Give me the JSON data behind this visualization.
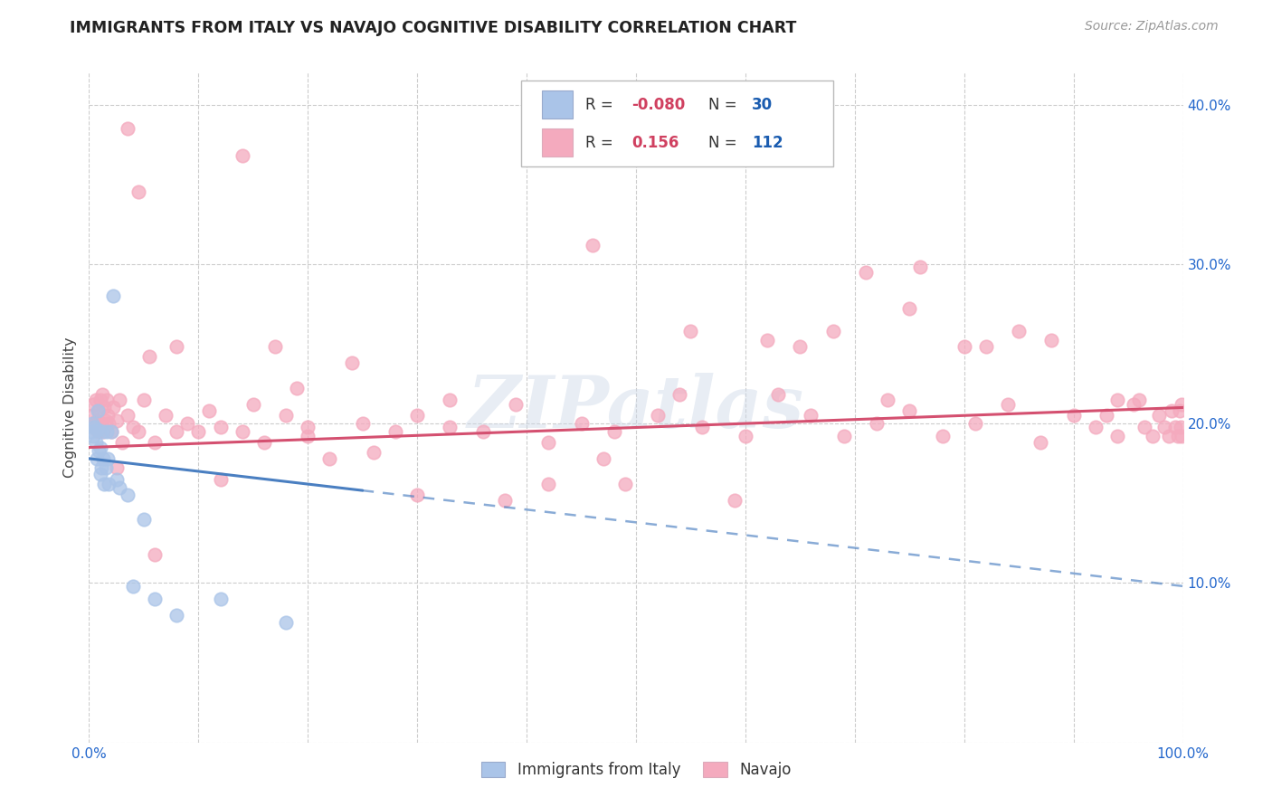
{
  "title": "IMMIGRANTS FROM ITALY VS NAVAJO COGNITIVE DISABILITY CORRELATION CHART",
  "source": "Source: ZipAtlas.com",
  "ylabel": "Cognitive Disability",
  "xlim": [
    0,
    1.0
  ],
  "ylim": [
    0,
    0.42
  ],
  "italy_R": -0.08,
  "italy_N": 30,
  "navajo_R": 0.156,
  "navajo_N": 112,
  "italy_color": "#aac4e8",
  "navajo_color": "#f4aabe",
  "italy_line_color": "#4a7fc1",
  "navajo_line_color": "#d45070",
  "legend_label_italy": "Immigrants from Italy",
  "legend_label_navajo": "Navajo",
  "watermark": "ZIPatlas",
  "italy_x": [
    0.002,
    0.003,
    0.004,
    0.005,
    0.006,
    0.007,
    0.008,
    0.008,
    0.009,
    0.01,
    0.01,
    0.011,
    0.012,
    0.013,
    0.014,
    0.015,
    0.016,
    0.017,
    0.018,
    0.02,
    0.022,
    0.025,
    0.028,
    0.035,
    0.04,
    0.05,
    0.06,
    0.08,
    0.12,
    0.18
  ],
  "italy_y": [
    0.195,
    0.2,
    0.192,
    0.198,
    0.188,
    0.178,
    0.208,
    0.196,
    0.183,
    0.168,
    0.185,
    0.172,
    0.195,
    0.178,
    0.162,
    0.172,
    0.195,
    0.178,
    0.162,
    0.195,
    0.28,
    0.165,
    0.16,
    0.155,
    0.098,
    0.14,
    0.09,
    0.08,
    0.09,
    0.075
  ],
  "navajo_x": [
    0.003,
    0.004,
    0.005,
    0.006,
    0.007,
    0.008,
    0.009,
    0.01,
    0.011,
    0.012,
    0.013,
    0.014,
    0.015,
    0.016,
    0.017,
    0.018,
    0.02,
    0.022,
    0.025,
    0.028,
    0.03,
    0.035,
    0.04,
    0.045,
    0.05,
    0.06,
    0.07,
    0.08,
    0.09,
    0.1,
    0.11,
    0.12,
    0.14,
    0.15,
    0.16,
    0.18,
    0.2,
    0.22,
    0.25,
    0.28,
    0.3,
    0.33,
    0.36,
    0.39,
    0.42,
    0.45,
    0.48,
    0.52,
    0.56,
    0.6,
    0.63,
    0.66,
    0.69,
    0.72,
    0.75,
    0.78,
    0.81,
    0.84,
    0.87,
    0.9,
    0.92,
    0.94,
    0.955,
    0.965,
    0.972,
    0.978,
    0.983,
    0.987,
    0.99,
    0.993,
    0.995,
    0.997,
    0.998,
    0.999,
    0.999,
    0.025,
    0.06,
    0.12,
    0.2,
    0.3,
    0.42,
    0.55,
    0.65,
    0.75,
    0.85,
    0.055,
    0.17,
    0.38,
    0.49,
    0.62,
    0.76,
    0.88,
    0.035,
    0.14,
    0.46,
    0.59,
    0.71,
    0.82,
    0.93,
    0.08,
    0.24,
    0.54,
    0.68,
    0.8,
    0.96,
    0.045,
    0.19,
    0.33,
    0.47,
    0.73,
    0.94,
    0.26
  ],
  "navajo_y": [
    0.205,
    0.212,
    0.198,
    0.215,
    0.202,
    0.195,
    0.208,
    0.215,
    0.2,
    0.218,
    0.195,
    0.21,
    0.202,
    0.215,
    0.205,
    0.2,
    0.195,
    0.21,
    0.202,
    0.215,
    0.188,
    0.205,
    0.198,
    0.195,
    0.215,
    0.188,
    0.205,
    0.195,
    0.2,
    0.195,
    0.208,
    0.198,
    0.195,
    0.212,
    0.188,
    0.205,
    0.192,
    0.178,
    0.2,
    0.195,
    0.205,
    0.198,
    0.195,
    0.212,
    0.188,
    0.2,
    0.195,
    0.205,
    0.198,
    0.192,
    0.218,
    0.205,
    0.192,
    0.2,
    0.208,
    0.192,
    0.2,
    0.212,
    0.188,
    0.205,
    0.198,
    0.192,
    0.212,
    0.198,
    0.192,
    0.205,
    0.198,
    0.192,
    0.208,
    0.198,
    0.192,
    0.208,
    0.198,
    0.212,
    0.192,
    0.172,
    0.118,
    0.165,
    0.198,
    0.155,
    0.162,
    0.258,
    0.248,
    0.272,
    0.258,
    0.242,
    0.248,
    0.152,
    0.162,
    0.252,
    0.298,
    0.252,
    0.385,
    0.368,
    0.312,
    0.152,
    0.295,
    0.248,
    0.205,
    0.248,
    0.238,
    0.218,
    0.258,
    0.248,
    0.215,
    0.345,
    0.222,
    0.215,
    0.178,
    0.215,
    0.215,
    0.182
  ]
}
